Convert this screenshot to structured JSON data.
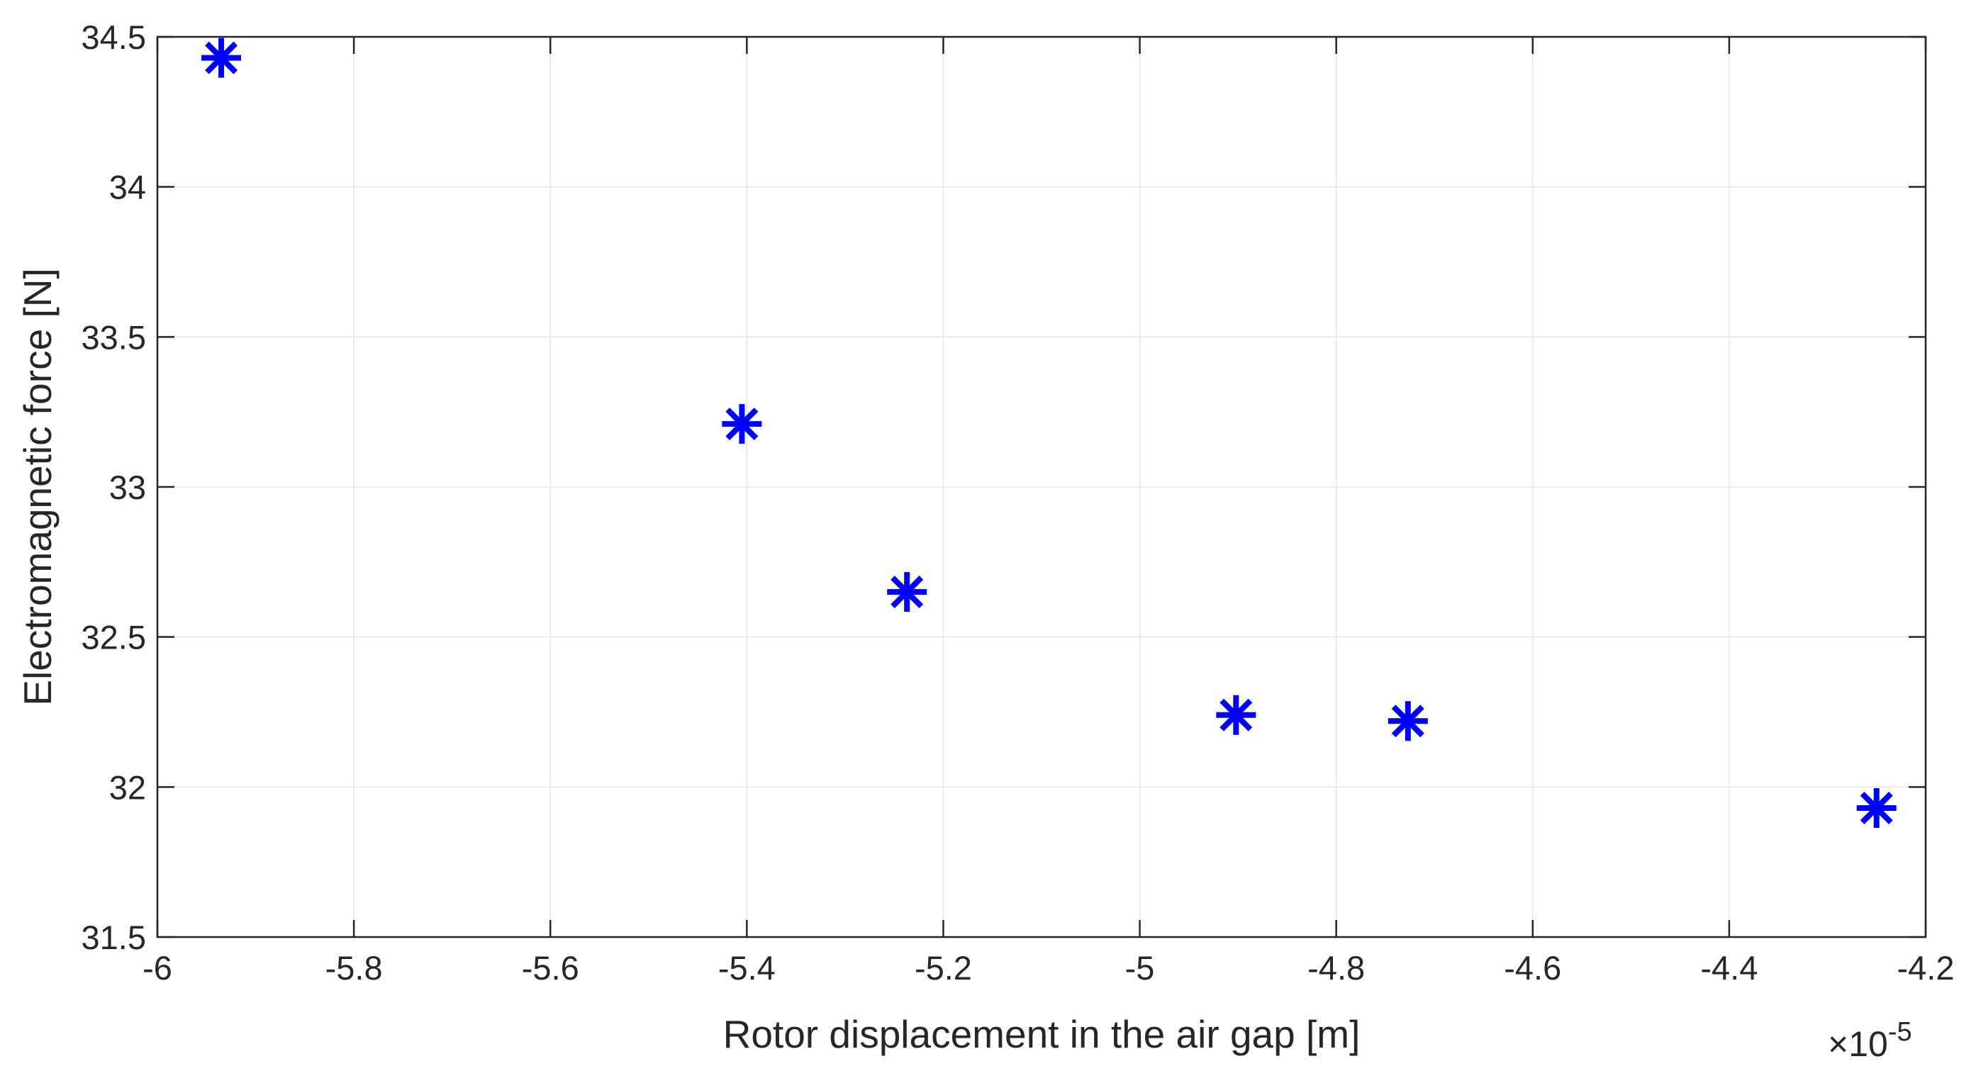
{
  "chart_data": {
    "type": "scatter",
    "xlabel": "Rotor displacement in the air gap [m]",
    "ylabel": "Electromagnetic force [N]",
    "xlim": [
      -6.0,
      -4.2
    ],
    "ylim": [
      31.5,
      34.5
    ],
    "x_exponent_label": {
      "base": "×10",
      "exponent": "-5"
    },
    "x_scale_factor": 1e-05,
    "xticks": [
      "-6",
      "-5.8",
      "-5.6",
      "-5.4",
      "-5.2",
      "-5",
      "-4.8",
      "-4.6",
      "-4.4",
      "-4.2"
    ],
    "xtick_values": [
      -6.0,
      -5.8,
      -5.6,
      -5.4,
      -5.2,
      -5.0,
      -4.8,
      -4.6,
      -4.4,
      -4.2
    ],
    "yticks": [
      "31.5",
      "32",
      "32.5",
      "33",
      "33.5",
      "34",
      "34.5"
    ],
    "ytick_values": [
      31.5,
      32.0,
      32.5,
      33.0,
      33.5,
      34.0,
      34.5
    ],
    "grid": true,
    "marker": "asterisk",
    "marker_color": "#0000ff",
    "series": [
      {
        "x": [
          -5.935,
          -5.405,
          -5.237,
          -4.902,
          -4.727,
          -4.25
        ],
        "y": [
          34.43,
          33.21,
          32.65,
          32.24,
          32.22,
          31.93
        ]
      }
    ]
  }
}
